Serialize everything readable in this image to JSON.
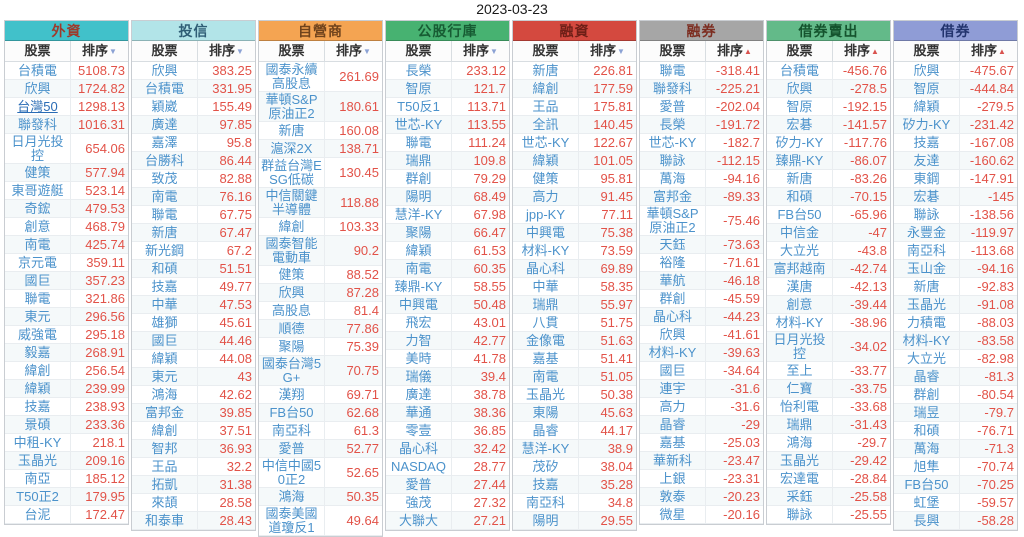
{
  "page": {
    "date": "2023-03-23"
  },
  "labels": {
    "stock": "股票",
    "rank": "排序"
  },
  "sort_icons": {
    "desc": "▼",
    "asc": "▲"
  },
  "tables": [
    {
      "id": "foreign",
      "title": "外資",
      "header_bg": "#41c1ca",
      "header_color": "#9e3a2b",
      "sort": "desc",
      "rows": [
        {
          "name": "台積電",
          "value": "5108.73"
        },
        {
          "name": "欣興",
          "value": "1724.82"
        },
        {
          "name": "台灣50",
          "value": "1298.13",
          "link": true
        },
        {
          "name": "聯發科",
          "value": "1016.31"
        },
        {
          "name": "日月光投控",
          "value": "654.06",
          "d": true
        },
        {
          "name": "健策",
          "value": "577.94"
        },
        {
          "name": "東哥遊艇",
          "value": "523.14"
        },
        {
          "name": "奇鋐",
          "value": "479.53"
        },
        {
          "name": "創意",
          "value": "468.79"
        },
        {
          "name": "南電",
          "value": "425.74"
        },
        {
          "name": "京元電",
          "value": "359.11"
        },
        {
          "name": "國巨",
          "value": "357.23"
        },
        {
          "name": "聯電",
          "value": "321.86"
        },
        {
          "name": "東元",
          "value": "296.56"
        },
        {
          "name": "威強電",
          "value": "295.18"
        },
        {
          "name": "毅嘉",
          "value": "268.91"
        },
        {
          "name": "緯創",
          "value": "256.54"
        },
        {
          "name": "緯穎",
          "value": "239.99"
        },
        {
          "name": "技嘉",
          "value": "238.93"
        },
        {
          "name": "景碩",
          "value": "233.36"
        },
        {
          "name": "中租-KY",
          "value": "218.1"
        },
        {
          "name": "玉晶光",
          "value": "209.16"
        },
        {
          "name": "南亞",
          "value": "185.12"
        },
        {
          "name": "T50正2",
          "value": "179.95"
        },
        {
          "name": "台泥",
          "value": "172.47"
        }
      ]
    },
    {
      "id": "trust",
      "title": "投信",
      "header_bg": "#b2e4e8",
      "header_color": "#2f5d75",
      "sort": "desc",
      "rows": [
        {
          "name": "欣興",
          "value": "383.25"
        },
        {
          "name": "台積電",
          "value": "331.95"
        },
        {
          "name": "穎崴",
          "value": "155.49"
        },
        {
          "name": "廣達",
          "value": "97.85"
        },
        {
          "name": "嘉澤",
          "value": "95.8"
        },
        {
          "name": "台勝科",
          "value": "86.44"
        },
        {
          "name": "致茂",
          "value": "82.88"
        },
        {
          "name": "南電",
          "value": "76.16"
        },
        {
          "name": "聯電",
          "value": "67.75"
        },
        {
          "name": "新唐",
          "value": "67.47"
        },
        {
          "name": "新光鋼",
          "value": "67.2"
        },
        {
          "name": "和碩",
          "value": "51.51"
        },
        {
          "name": "技嘉",
          "value": "49.77"
        },
        {
          "name": "中華",
          "value": "47.53"
        },
        {
          "name": "雄獅",
          "value": "45.61"
        },
        {
          "name": "國巨",
          "value": "44.46"
        },
        {
          "name": "緯穎",
          "value": "44.08"
        },
        {
          "name": "東元",
          "value": "43"
        },
        {
          "name": "鴻海",
          "value": "42.62"
        },
        {
          "name": "富邦金",
          "value": "39.85"
        },
        {
          "name": "緯創",
          "value": "37.51"
        },
        {
          "name": "智邦",
          "value": "36.93"
        },
        {
          "name": "王品",
          "value": "32.2"
        },
        {
          "name": "拓凱",
          "value": "31.38"
        },
        {
          "name": "來頡",
          "value": "28.58"
        },
        {
          "name": "和泰車",
          "value": "28.43"
        }
      ]
    },
    {
      "id": "dealer",
      "title": "自營商",
      "header_bg": "#f4a452",
      "header_color": "#6f431c",
      "sort": "desc",
      "rows": [
        {
          "name": "國泰永續高股息",
          "value": "261.69",
          "d": true
        },
        {
          "name": "華頓S&P原油正2",
          "value": "180.61",
          "d": true
        },
        {
          "name": "新唐",
          "value": "160.08"
        },
        {
          "name": "滬深2X",
          "value": "138.71"
        },
        {
          "name": "群益台灣ESG低碳",
          "value": "130.45",
          "d": true
        },
        {
          "name": "中信關鍵半導體",
          "value": "118.88",
          "d": true
        },
        {
          "name": "緯創",
          "value": "103.33"
        },
        {
          "name": "國泰智能電動車",
          "value": "90.2",
          "d": true
        },
        {
          "name": "健策",
          "value": "88.52"
        },
        {
          "name": "欣興",
          "value": "87.28"
        },
        {
          "name": "高股息",
          "value": "81.4"
        },
        {
          "name": "順德",
          "value": "77.86"
        },
        {
          "name": "聚陽",
          "value": "75.39"
        },
        {
          "name": "國泰台灣5G+",
          "value": "70.75",
          "d": true
        },
        {
          "name": "漢翔",
          "value": "69.71"
        },
        {
          "name": "FB台50",
          "value": "62.68"
        },
        {
          "name": "南亞科",
          "value": "61.3"
        },
        {
          "name": "愛普",
          "value": "52.77"
        },
        {
          "name": "中信中國50正2",
          "value": "52.65",
          "d": true
        },
        {
          "name": "鴻海",
          "value": "50.35"
        },
        {
          "name": "國泰美國道瓊反1",
          "value": "49.64",
          "d": true
        }
      ]
    },
    {
      "id": "public-bank",
      "title": "公股行庫",
      "header_bg": "#47b271",
      "header_color": "#175c33",
      "sort": "desc",
      "rows": [
        {
          "name": "長榮",
          "value": "233.12"
        },
        {
          "name": "智原",
          "value": "121.7"
        },
        {
          "name": "T50反1",
          "value": "113.71"
        },
        {
          "name": "世芯-KY",
          "value": "113.55"
        },
        {
          "name": "聯電",
          "value": "111.24"
        },
        {
          "name": "瑞鼎",
          "value": "109.8"
        },
        {
          "name": "群創",
          "value": "79.29"
        },
        {
          "name": "陽明",
          "value": "68.49"
        },
        {
          "name": "慧洋-KY",
          "value": "67.98"
        },
        {
          "name": "聚陽",
          "value": "66.47"
        },
        {
          "name": "緯穎",
          "value": "61.53"
        },
        {
          "name": "南電",
          "value": "60.35"
        },
        {
          "name": "臻鼎-KY",
          "value": "58.55"
        },
        {
          "name": "中興電",
          "value": "50.48"
        },
        {
          "name": "飛宏",
          "value": "43.01"
        },
        {
          "name": "力智",
          "value": "42.77"
        },
        {
          "name": "美時",
          "value": "41.78"
        },
        {
          "name": "瑞儀",
          "value": "39.4"
        },
        {
          "name": "廣達",
          "value": "38.78"
        },
        {
          "name": "華通",
          "value": "38.36"
        },
        {
          "name": "零壹",
          "value": "36.85"
        },
        {
          "name": "晶心科",
          "value": "32.42"
        },
        {
          "name": "NASDAQ",
          "value": "28.77"
        },
        {
          "name": "愛普",
          "value": "27.44"
        },
        {
          "name": "強茂",
          "value": "27.32"
        },
        {
          "name": "大聯大",
          "value": "27.21"
        }
      ]
    },
    {
      "id": "margin",
      "title": "融資",
      "header_bg": "#d4493f",
      "header_color": "#6e1f17",
      "sort": "desc",
      "rows": [
        {
          "name": "新唐",
          "value": "226.81"
        },
        {
          "name": "緯創",
          "value": "177.59"
        },
        {
          "name": "王品",
          "value": "175.81"
        },
        {
          "name": "全訊",
          "value": "140.45"
        },
        {
          "name": "世芯-KY",
          "value": "122.67"
        },
        {
          "name": "緯穎",
          "value": "101.05"
        },
        {
          "name": "健策",
          "value": "95.81"
        },
        {
          "name": "高力",
          "value": "91.45"
        },
        {
          "name": "jpp-KY",
          "value": "77.11"
        },
        {
          "name": "中興電",
          "value": "75.38"
        },
        {
          "name": "材料-KY",
          "value": "73.59"
        },
        {
          "name": "晶心科",
          "value": "69.89"
        },
        {
          "name": "中華",
          "value": "58.35"
        },
        {
          "name": "瑞鼎",
          "value": "55.97"
        },
        {
          "name": "八貫",
          "value": "51.75"
        },
        {
          "name": "金像電",
          "value": "51.63"
        },
        {
          "name": "嘉基",
          "value": "51.41"
        },
        {
          "name": "南電",
          "value": "51.05"
        },
        {
          "name": "玉晶光",
          "value": "50.38"
        },
        {
          "name": "東陽",
          "value": "45.63"
        },
        {
          "name": "晶睿",
          "value": "44.17"
        },
        {
          "name": "慧洋-KY",
          "value": "38.9"
        },
        {
          "name": "茂矽",
          "value": "38.04"
        },
        {
          "name": "技嘉",
          "value": "35.28"
        },
        {
          "name": "南亞科",
          "value": "34.8"
        },
        {
          "name": "陽明",
          "value": "29.55"
        }
      ]
    },
    {
      "id": "short-sale",
      "title": "融券",
      "header_bg": "#a6a6a6",
      "header_color": "#7c2d20",
      "sort": "asc",
      "rows": [
        {
          "name": "聯電",
          "value": "-318.41"
        },
        {
          "name": "聯發科",
          "value": "-225.21"
        },
        {
          "name": "愛普",
          "value": "-202.04"
        },
        {
          "name": "長榮",
          "value": "-191.72"
        },
        {
          "name": "世芯-KY",
          "value": "-182.7"
        },
        {
          "name": "聯詠",
          "value": "-112.15"
        },
        {
          "name": "萬海",
          "value": "-94.16"
        },
        {
          "name": "富邦金",
          "value": "-89.33"
        },
        {
          "name": "華頓S&P原油正2",
          "value": "-75.46",
          "d": true
        },
        {
          "name": "天鈺",
          "value": "-73.63"
        },
        {
          "name": "裕隆",
          "value": "-71.61"
        },
        {
          "name": "華航",
          "value": "-46.18"
        },
        {
          "name": "群創",
          "value": "-45.59"
        },
        {
          "name": "晶心科",
          "value": "-44.23"
        },
        {
          "name": "欣興",
          "value": "-41.61"
        },
        {
          "name": "材料-KY",
          "value": "-39.63"
        },
        {
          "name": "國巨",
          "value": "-34.64"
        },
        {
          "name": "連宇",
          "value": "-31.6"
        },
        {
          "name": "高力",
          "value": "-31.6"
        },
        {
          "name": "晶睿",
          "value": "-29"
        },
        {
          "name": "嘉基",
          "value": "-25.03"
        },
        {
          "name": "華新科",
          "value": "-23.47"
        },
        {
          "name": "上銀",
          "value": "-23.31"
        },
        {
          "name": "敦泰",
          "value": "-20.23"
        },
        {
          "name": "微星",
          "value": "-20.16"
        }
      ]
    },
    {
      "id": "lend-sell",
      "title": "借券賣出",
      "header_bg": "#63ba89",
      "header_color": "#14532d",
      "sort": "asc",
      "rows": [
        {
          "name": "台積電",
          "value": "-456.76"
        },
        {
          "name": "欣興",
          "value": "-278.5"
        },
        {
          "name": "智原",
          "value": "-192.15"
        },
        {
          "name": "宏碁",
          "value": "-141.57"
        },
        {
          "name": "矽力-KY",
          "value": "-117.76"
        },
        {
          "name": "臻鼎-KY",
          "value": "-86.07"
        },
        {
          "name": "新唐",
          "value": "-83.26"
        },
        {
          "name": "和碩",
          "value": "-70.15"
        },
        {
          "name": "FB台50",
          "value": "-65.96"
        },
        {
          "name": "中信金",
          "value": "-47"
        },
        {
          "name": "大立光",
          "value": "-43.8"
        },
        {
          "name": "富邦越南",
          "value": "-42.74"
        },
        {
          "name": "漢唐",
          "value": "-42.13"
        },
        {
          "name": "創意",
          "value": "-39.44"
        },
        {
          "name": "材料-KY",
          "value": "-38.96"
        },
        {
          "name": "日月光投控",
          "value": "-34.02",
          "d": true
        },
        {
          "name": "至上",
          "value": "-33.77"
        },
        {
          "name": "仁寶",
          "value": "-33.75"
        },
        {
          "name": "怡利電",
          "value": "-33.68"
        },
        {
          "name": "瑞鼎",
          "value": "-31.43"
        },
        {
          "name": "鴻海",
          "value": "-29.7"
        },
        {
          "name": "玉晶光",
          "value": "-29.42"
        },
        {
          "name": "宏達電",
          "value": "-28.84"
        },
        {
          "name": "采鈺",
          "value": "-25.58"
        },
        {
          "name": "聯詠",
          "value": "-25.55"
        }
      ]
    },
    {
      "id": "lend",
      "title": "借券",
      "header_bg": "#8f9cd6",
      "header_color": "#23346e",
      "sort": "asc",
      "rows": [
        {
          "name": "欣興",
          "value": "-475.67"
        },
        {
          "name": "智原",
          "value": "-444.84"
        },
        {
          "name": "緯穎",
          "value": "-279.5"
        },
        {
          "name": "矽力-KY",
          "value": "-231.42"
        },
        {
          "name": "技嘉",
          "value": "-167.08"
        },
        {
          "name": "友達",
          "value": "-160.62"
        },
        {
          "name": "東鋼",
          "value": "-147.91"
        },
        {
          "name": "宏碁",
          "value": "-145"
        },
        {
          "name": "聯詠",
          "value": "-138.56"
        },
        {
          "name": "永豐金",
          "value": "-119.97"
        },
        {
          "name": "南亞科",
          "value": "-113.68"
        },
        {
          "name": "玉山金",
          "value": "-94.16"
        },
        {
          "name": "新唐",
          "value": "-92.83"
        },
        {
          "name": "玉晶光",
          "value": "-91.08"
        },
        {
          "name": "力積電",
          "value": "-88.03"
        },
        {
          "name": "材料-KY",
          "value": "-83.58"
        },
        {
          "name": "大立光",
          "value": "-82.98"
        },
        {
          "name": "晶睿",
          "value": "-81.3"
        },
        {
          "name": "群創",
          "value": "-80.54"
        },
        {
          "name": "瑞昱",
          "value": "-79.7"
        },
        {
          "name": "和碩",
          "value": "-76.71"
        },
        {
          "name": "萬海",
          "value": "-71.3"
        },
        {
          "name": "旭隼",
          "value": "-70.74"
        },
        {
          "name": "FB台50",
          "value": "-70.25"
        },
        {
          "name": "虹堡",
          "value": "-59.57"
        },
        {
          "name": "長興",
          "value": "-58.28"
        }
      ]
    }
  ]
}
